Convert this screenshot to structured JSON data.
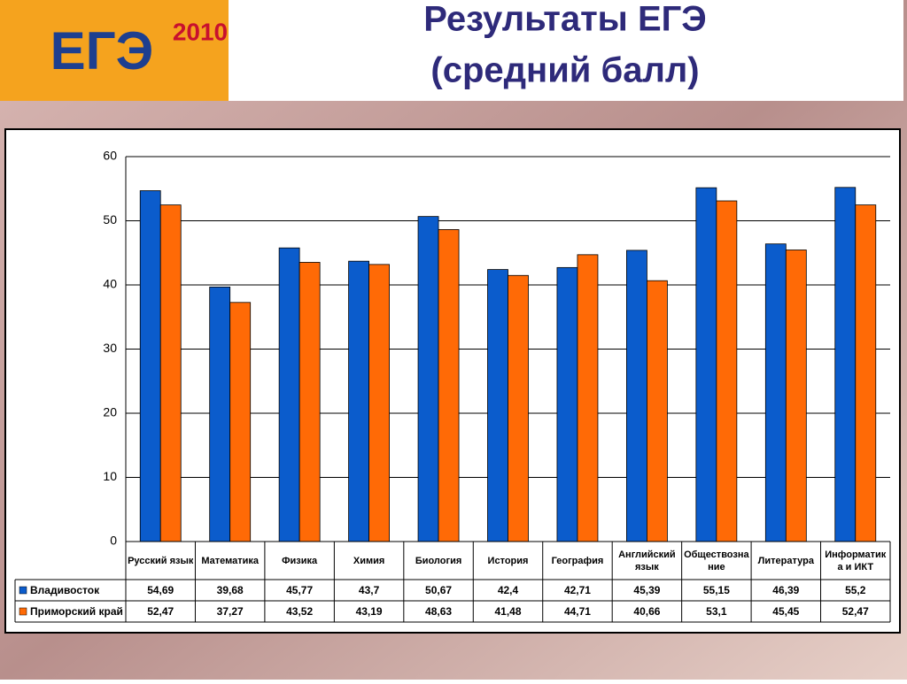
{
  "logo": {
    "text": "ЕГЭ",
    "year": "2010"
  },
  "chart_data": {
    "type": "bar",
    "title_lines": [
      "Результаты ЕГЭ",
      "(средний балл)"
    ],
    "categories": [
      "Русский язык",
      "Математика",
      "Физика",
      "Химия",
      "Биология",
      "История",
      "География",
      "Английский язык",
      "Обществознание",
      "Литература",
      "Информатика и ИКТ"
    ],
    "series": [
      {
        "name": "Владивосток",
        "color": "#0b5ccc",
        "values": [
          54.69,
          39.68,
          45.77,
          43.7,
          50.67,
          42.4,
          42.71,
          45.39,
          55.15,
          46.39,
          55.2
        ],
        "value_labels": [
          "54,69",
          "39,68",
          "45,77",
          "43,7",
          "50,67",
          "42,4",
          "42,71",
          "45,39",
          "55,15",
          "46,39",
          "55,2"
        ]
      },
      {
        "name": "Приморский край",
        "color": "#ff6a06",
        "values": [
          52.47,
          37.27,
          43.52,
          43.19,
          48.63,
          41.48,
          44.71,
          40.66,
          53.1,
          45.45,
          52.47
        ],
        "value_labels": [
          "52,47",
          "37,27",
          "43,52",
          "43,19",
          "48,63",
          "41,48",
          "44,71",
          "40,66",
          "53,1",
          "45,45",
          "52,47"
        ]
      }
    ],
    "ylim": [
      0,
      60
    ],
    "yticks": [
      0,
      10,
      20,
      30,
      40,
      50,
      60
    ],
    "grid": true
  }
}
